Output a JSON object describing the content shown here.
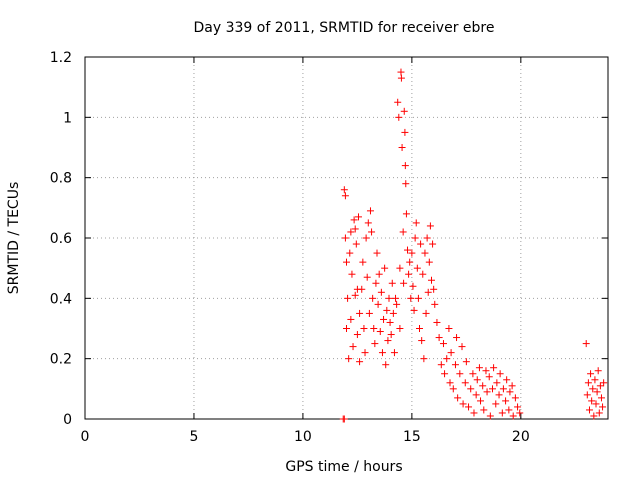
{
  "chart_data": {
    "type": "scatter",
    "title": "Day 339 of 2011, SRMTID for receiver ebre",
    "xlabel": "GPS time / hours",
    "ylabel": "SRMTID / TECUs",
    "xlim": [
      0,
      24
    ],
    "ylim": [
      0,
      1.2
    ],
    "xticks": [
      0,
      5,
      10,
      15,
      20
    ],
    "yticks": [
      0,
      0.2,
      0.4,
      0.6,
      0.8,
      1,
      1.2
    ],
    "xtick_labels": [
      "0",
      "5",
      "10",
      "15",
      "20"
    ],
    "ytick_labels": [
      "0",
      "0.2",
      "0.4",
      "0.6",
      "0.8",
      "1",
      "1.2"
    ],
    "grid": true,
    "marker": "+",
    "color": "#ff0000",
    "series": [
      {
        "name": "SRMTID",
        "points": [
          [
            11.85,
            0.0
          ],
          [
            11.9,
            0.0
          ],
          [
            11.9,
            0.76
          ],
          [
            11.95,
            0.74
          ],
          [
            11.95,
            0.6
          ],
          [
            12.0,
            0.52
          ],
          [
            12.0,
            0.3
          ],
          [
            12.05,
            0.4
          ],
          [
            12.1,
            0.2
          ],
          [
            12.15,
            0.55
          ],
          [
            12.2,
            0.62
          ],
          [
            12.2,
            0.33
          ],
          [
            12.25,
            0.48
          ],
          [
            12.3,
            0.24
          ],
          [
            12.35,
            0.66
          ],
          [
            12.4,
            0.63
          ],
          [
            12.4,
            0.41
          ],
          [
            12.45,
            0.58
          ],
          [
            12.5,
            0.43
          ],
          [
            12.5,
            0.28
          ],
          [
            12.55,
            0.67
          ],
          [
            12.6,
            0.35
          ],
          [
            12.6,
            0.19
          ],
          [
            12.7,
            0.43
          ],
          [
            12.75,
            0.52
          ],
          [
            12.8,
            0.3
          ],
          [
            12.85,
            0.22
          ],
          [
            12.9,
            0.6
          ],
          [
            12.95,
            0.47
          ],
          [
            13.0,
            0.65
          ],
          [
            13.05,
            0.35
          ],
          [
            13.1,
            0.69
          ],
          [
            13.15,
            0.62
          ],
          [
            13.2,
            0.4
          ],
          [
            13.25,
            0.3
          ],
          [
            13.3,
            0.25
          ],
          [
            13.35,
            0.45
          ],
          [
            13.4,
            0.55
          ],
          [
            13.45,
            0.38
          ],
          [
            13.5,
            0.48
          ],
          [
            13.55,
            0.29
          ],
          [
            13.6,
            0.42
          ],
          [
            13.65,
            0.22
          ],
          [
            13.7,
            0.33
          ],
          [
            13.75,
            0.5
          ],
          [
            13.8,
            0.18
          ],
          [
            13.85,
            0.36
          ],
          [
            13.9,
            0.26
          ],
          [
            13.95,
            0.4
          ],
          [
            14.0,
            0.32
          ],
          [
            14.05,
            0.28
          ],
          [
            14.1,
            0.45
          ],
          [
            14.15,
            0.35
          ],
          [
            14.2,
            0.22
          ],
          [
            14.25,
            0.4
          ],
          [
            14.3,
            0.38
          ],
          [
            14.35,
            1.05
          ],
          [
            14.4,
            1.0
          ],
          [
            14.45,
            0.5
          ],
          [
            14.45,
            0.3
          ],
          [
            14.5,
            1.15
          ],
          [
            14.52,
            1.13
          ],
          [
            14.55,
            0.9
          ],
          [
            14.6,
            0.62
          ],
          [
            14.62,
            0.45
          ],
          [
            14.65,
            1.02
          ],
          [
            14.68,
            0.95
          ],
          [
            14.7,
            0.84
          ],
          [
            14.72,
            0.78
          ],
          [
            14.75,
            0.68
          ],
          [
            14.8,
            0.56
          ],
          [
            14.85,
            0.48
          ],
          [
            14.9,
            0.52
          ],
          [
            14.95,
            0.4
          ],
          [
            15.0,
            0.55
          ],
          [
            15.05,
            0.44
          ],
          [
            15.1,
            0.36
          ],
          [
            15.15,
            0.6
          ],
          [
            15.2,
            0.65
          ],
          [
            15.25,
            0.5
          ],
          [
            15.3,
            0.4
          ],
          [
            15.35,
            0.3
          ],
          [
            15.4,
            0.58
          ],
          [
            15.45,
            0.26
          ],
          [
            15.5,
            0.48
          ],
          [
            15.55,
            0.2
          ],
          [
            15.6,
            0.55
          ],
          [
            15.65,
            0.35
          ],
          [
            15.7,
            0.6
          ],
          [
            15.75,
            0.42
          ],
          [
            15.8,
            0.52
          ],
          [
            15.85,
            0.64
          ],
          [
            15.9,
            0.46
          ],
          [
            15.95,
            0.58
          ],
          [
            16.0,
            0.43
          ],
          [
            16.05,
            0.38
          ],
          [
            16.15,
            0.32
          ],
          [
            16.25,
            0.27
          ],
          [
            16.35,
            0.18
          ],
          [
            16.45,
            0.25
          ],
          [
            16.5,
            0.15
          ],
          [
            16.6,
            0.2
          ],
          [
            16.7,
            0.3
          ],
          [
            16.75,
            0.12
          ],
          [
            16.8,
            0.22
          ],
          [
            16.9,
            0.1
          ],
          [
            17.0,
            0.18
          ],
          [
            17.05,
            0.27
          ],
          [
            17.1,
            0.07
          ],
          [
            17.2,
            0.15
          ],
          [
            17.3,
            0.24
          ],
          [
            17.35,
            0.05
          ],
          [
            17.45,
            0.12
          ],
          [
            17.5,
            0.19
          ],
          [
            17.6,
            0.04
          ],
          [
            17.7,
            0.1
          ],
          [
            17.8,
            0.15
          ],
          [
            17.85,
            0.02
          ],
          [
            17.95,
            0.08
          ],
          [
            18.0,
            0.13
          ],
          [
            18.1,
            0.17
          ],
          [
            18.15,
            0.06
          ],
          [
            18.25,
            0.11
          ],
          [
            18.3,
            0.03
          ],
          [
            18.4,
            0.16
          ],
          [
            18.45,
            0.09
          ],
          [
            18.55,
            0.14
          ],
          [
            18.6,
            0.01
          ],
          [
            18.7,
            0.1
          ],
          [
            18.75,
            0.17
          ],
          [
            18.85,
            0.05
          ],
          [
            18.9,
            0.12
          ],
          [
            19.0,
            0.08
          ],
          [
            19.05,
            0.15
          ],
          [
            19.15,
            0.02
          ],
          [
            19.2,
            0.1
          ],
          [
            19.3,
            0.06
          ],
          [
            19.35,
            0.13
          ],
          [
            19.45,
            0.03
          ],
          [
            19.5,
            0.09
          ],
          [
            19.6,
            0.11
          ],
          [
            19.65,
            0.01
          ],
          [
            19.75,
            0.07
          ],
          [
            19.85,
            0.04
          ],
          [
            19.95,
            0.02
          ],
          [
            23.0,
            0.25
          ],
          [
            23.05,
            0.08
          ],
          [
            23.1,
            0.12
          ],
          [
            23.15,
            0.03
          ],
          [
            23.2,
            0.15
          ],
          [
            23.25,
            0.06
          ],
          [
            23.3,
            0.1
          ],
          [
            23.35,
            0.01
          ],
          [
            23.4,
            0.13
          ],
          [
            23.45,
            0.05
          ],
          [
            23.5,
            0.09
          ],
          [
            23.55,
            0.16
          ],
          [
            23.6,
            0.02
          ],
          [
            23.65,
            0.11
          ],
          [
            23.7,
            0.07
          ],
          [
            23.75,
            0.04
          ],
          [
            23.8,
            0.12
          ]
        ]
      }
    ]
  }
}
